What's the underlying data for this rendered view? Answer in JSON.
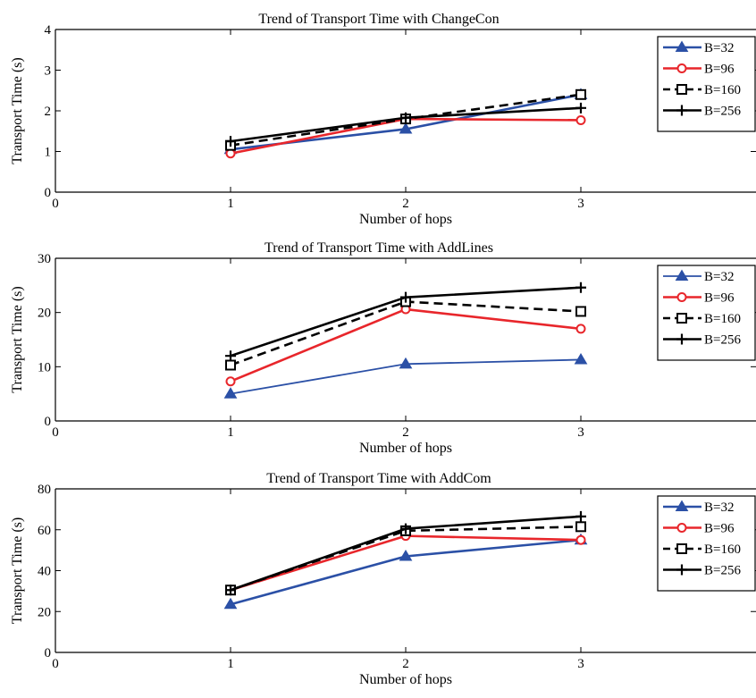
{
  "colors": {
    "b32": "#2b50a6",
    "b96": "#e8262b",
    "b160": "#000000",
    "b256": "#000000"
  },
  "chart_data": [
    {
      "type": "line",
      "title": "Trend of Transport Time with ChangeCon",
      "xlabel": "Number of hops",
      "ylabel": "Transport Time (s)",
      "xlim": [
        0,
        4
      ],
      "ylim": [
        0,
        4
      ],
      "x_ticks": [
        0,
        1,
        2,
        3
      ],
      "y_ticks": [
        0,
        1,
        2,
        3,
        4
      ],
      "grid": false,
      "legend_position": "top-right",
      "x": [
        1,
        2,
        3
      ],
      "series": [
        {
          "name": "B=32",
          "values": [
            1.05,
            1.55,
            2.4
          ],
          "color": "#2b50a6",
          "marker": "triangle",
          "dash": "solid",
          "width": 2.6
        },
        {
          "name": "B=96",
          "values": [
            0.95,
            1.8,
            1.77
          ],
          "color": "#e8262b",
          "marker": "circle",
          "dash": "solid",
          "width": 2.6
        },
        {
          "name": "B=160",
          "values": [
            1.15,
            1.8,
            2.4
          ],
          "color": "#000000",
          "marker": "square",
          "dash": "dashed",
          "width": 2.6
        },
        {
          "name": "B=256",
          "values": [
            1.25,
            1.83,
            2.07
          ],
          "color": "#000000",
          "marker": "plus",
          "dash": "solid",
          "width": 2.6
        }
      ]
    },
    {
      "type": "line",
      "title": "Trend of Transport Time with AddLines",
      "xlabel": "Number of hops",
      "ylabel": "Transport Time (s)",
      "xlim": [
        0,
        4
      ],
      "ylim": [
        0,
        30
      ],
      "x_ticks": [
        0,
        1,
        2,
        3
      ],
      "y_ticks": [
        0,
        10,
        20,
        30
      ],
      "grid": false,
      "legend_position": "top-right",
      "x": [
        1,
        2,
        3
      ],
      "series": [
        {
          "name": "B=32",
          "values": [
            5,
            10.5,
            11.3
          ],
          "color": "#2b50a6",
          "marker": "triangle",
          "dash": "solid",
          "width": 1.8
        },
        {
          "name": "B=96",
          "values": [
            7.3,
            20.6,
            17
          ],
          "color": "#e8262b",
          "marker": "circle",
          "dash": "solid",
          "width": 2.6
        },
        {
          "name": "B=160",
          "values": [
            10.3,
            22,
            20.2
          ],
          "color": "#000000",
          "marker": "square",
          "dash": "dashed",
          "width": 2.6
        },
        {
          "name": "B=256",
          "values": [
            12,
            22.8,
            24.6
          ],
          "color": "#000000",
          "marker": "plus",
          "dash": "solid",
          "width": 2.6
        }
      ]
    },
    {
      "type": "line",
      "title": "Trend of Transport Time with AddCom",
      "xlabel": "Number of hops",
      "ylabel": "Transport Time (s)",
      "xlim": [
        0,
        4
      ],
      "ylim": [
        0,
        80
      ],
      "x_ticks": [
        0,
        1,
        2,
        3
      ],
      "y_ticks": [
        0,
        20,
        40,
        60,
        80
      ],
      "grid": false,
      "legend_position": "top-right",
      "x": [
        1,
        2,
        3
      ],
      "series": [
        {
          "name": "B=32",
          "values": [
            23.5,
            47,
            55
          ],
          "color": "#2b50a6",
          "marker": "triangle",
          "dash": "solid",
          "width": 2.6
        },
        {
          "name": "B=96",
          "values": [
            30.5,
            57,
            55
          ],
          "color": "#e8262b",
          "marker": "circle",
          "dash": "solid",
          "width": 2.6
        },
        {
          "name": "B=160",
          "values": [
            30.5,
            59.5,
            61.5
          ],
          "color": "#000000",
          "marker": "square",
          "dash": "dashed",
          "width": 2.6
        },
        {
          "name": "B=256",
          "values": [
            30.5,
            60.5,
            66.5
          ],
          "color": "#000000",
          "marker": "plus",
          "dash": "solid",
          "width": 2.6
        }
      ]
    }
  ]
}
